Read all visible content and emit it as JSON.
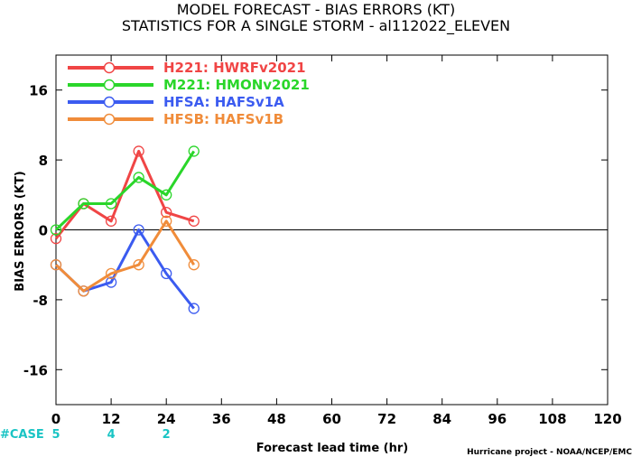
{
  "header": {
    "title_line1": "MODEL FORECAST - BIAS ERRORS (KT)",
    "title_line2": "STATISTICS FOR A SINGLE STORM - al112022_ELEVEN"
  },
  "footer": {
    "case_label": "#CASE",
    "credit": "Hurricane project - NOAA/NCEP/EMC"
  },
  "chart_data": {
    "type": "line",
    "xlabel": "Forecast lead time (hr)",
    "ylabel": "BIAS ERRORS (KT)",
    "xlim": [
      0,
      120
    ],
    "ylim": [
      -20,
      20
    ],
    "xticks": [
      0,
      12,
      24,
      36,
      48,
      60,
      72,
      84,
      96,
      108,
      120
    ],
    "yticks": [
      -16,
      -8,
      0,
      8,
      16
    ],
    "grid": false,
    "zero_line": true,
    "legend_placement": "top-left",
    "x": [
      0,
      6,
      12,
      18,
      24,
      30
    ],
    "series": [
      {
        "name": "H221:  HWRFv2021",
        "color": "#f04545",
        "values": [
          -1,
          3,
          1,
          9,
          2,
          1
        ]
      },
      {
        "name": "M221:  HMONv2021",
        "color": "#2ad62a",
        "values": [
          0,
          3,
          3,
          6,
          4,
          9
        ]
      },
      {
        "name": "HFSA:  HAFSv1A",
        "color": "#3b5bf0",
        "values": [
          -4,
          -7,
          -6,
          0,
          -5,
          -9
        ]
      },
      {
        "name": "HFSB:  HAFSv1B",
        "color": "#f08c3a",
        "values": [
          -4,
          -7,
          -5,
          -4,
          1,
          -4
        ]
      }
    ],
    "case_counts": [
      {
        "x": 0,
        "count": "5"
      },
      {
        "x": 12,
        "count": "4"
      },
      {
        "x": 24,
        "count": "2"
      }
    ]
  }
}
